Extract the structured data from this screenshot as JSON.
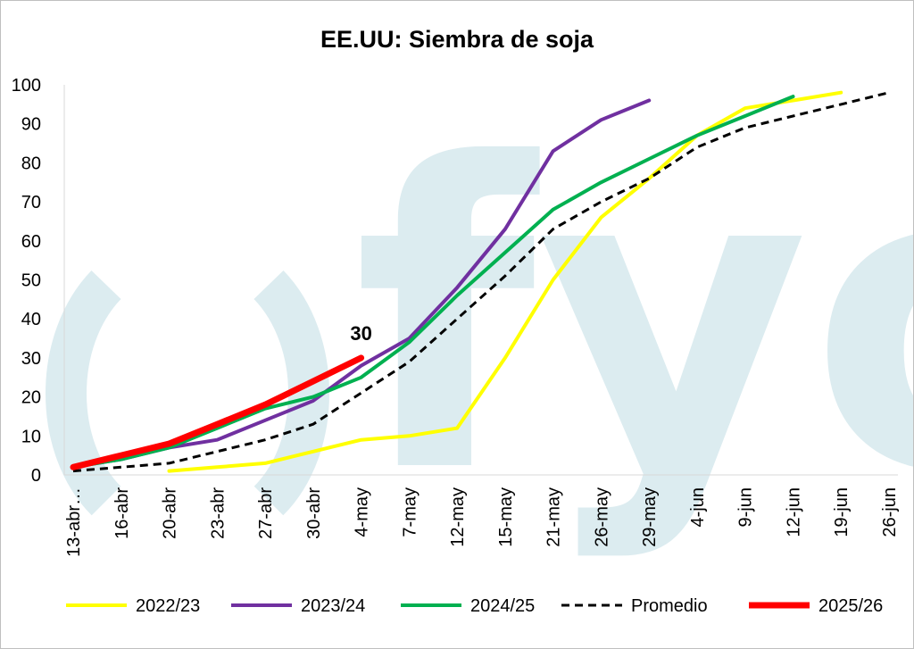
{
  "chart_data": {
    "type": "line",
    "title": "EE.UU: Siembra de soja",
    "xlabel": "",
    "ylabel": "",
    "ylim": [
      0,
      100
    ],
    "yticks": [
      "0",
      "10",
      "20",
      "30",
      "40",
      "50",
      "60",
      "70",
      "80",
      "90",
      "100"
    ],
    "categories": [
      "13-abr…",
      "16-abr",
      "20-abr",
      "23-abr",
      "27-abr",
      "30-abr",
      "4-may",
      "7-may",
      "12-may",
      "15-may",
      "21-may",
      "26-may",
      "29-may",
      "4-jun",
      "9-jun",
      "12-jun",
      "19-jun",
      "26-jun"
    ],
    "series": [
      {
        "name": "2022/23",
        "color": "#ffff00",
        "dash": false,
        "width": 4,
        "values": [
          null,
          null,
          1,
          2,
          3,
          6,
          9,
          10,
          12,
          30,
          50,
          66,
          76,
          87,
          94,
          96,
          98,
          null
        ]
      },
      {
        "name": "2023/24",
        "color": "#7030a0",
        "dash": false,
        "width": 4,
        "values": [
          2,
          4,
          7,
          9,
          14,
          19,
          28,
          35,
          48,
          63,
          83,
          91,
          96,
          null,
          null,
          null,
          null,
          null
        ]
      },
      {
        "name": "2024/25",
        "color": "#00b050",
        "dash": false,
        "width": 4,
        "values": [
          2,
          4,
          7,
          12,
          17,
          20,
          25,
          34,
          46,
          57,
          68,
          75,
          81,
          87,
          92,
          97,
          null,
          null
        ]
      },
      {
        "name": "Promedio",
        "color": "#000000",
        "dash": true,
        "width": 3,
        "values": [
          1,
          2,
          3,
          6,
          9,
          13,
          21,
          29,
          40,
          51,
          63,
          70,
          76,
          84,
          89,
          92,
          95,
          98
        ]
      },
      {
        "name": "2025/26",
        "color": "#ff0000",
        "dash": false,
        "width": 7,
        "values": [
          2,
          5,
          8,
          13,
          18,
          24,
          30,
          null,
          null,
          null,
          null,
          null,
          null,
          null,
          null,
          null,
          null,
          null
        ]
      }
    ],
    "annotations": [
      {
        "text": "30",
        "series": "2025/26",
        "index": 6
      }
    ],
    "grid": false,
    "legend_position": "bottom",
    "watermark": "fyo"
  }
}
